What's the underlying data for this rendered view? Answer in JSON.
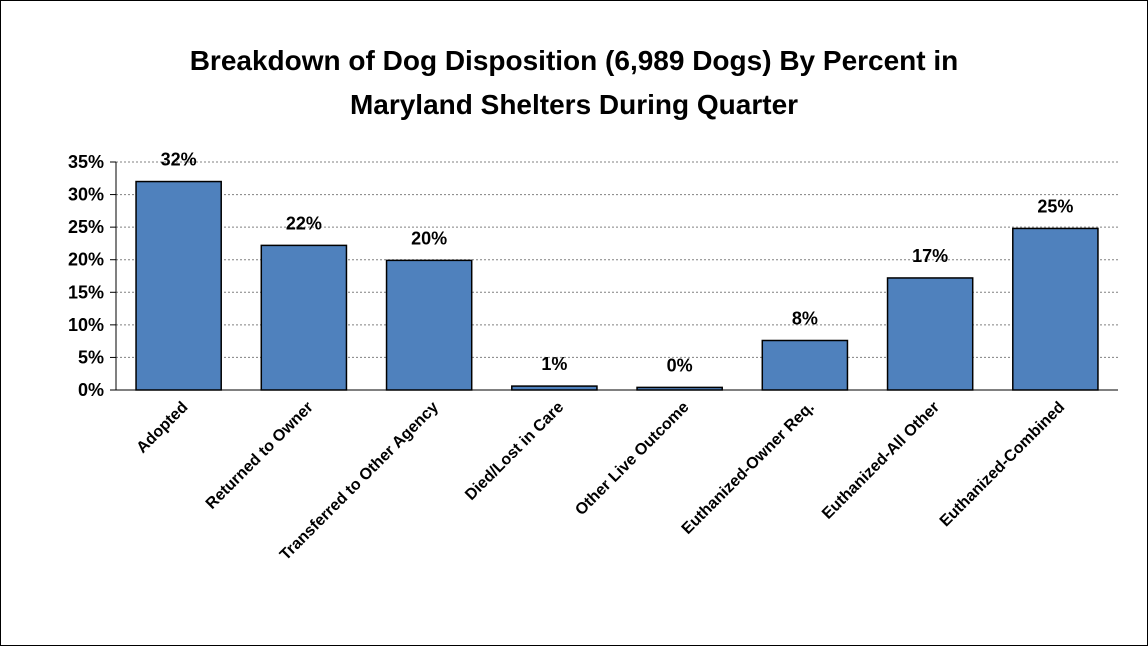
{
  "chart_data": {
    "type": "bar",
    "title_lines": [
      "Breakdown of Dog Disposition (6,989 Dogs) By Percent in",
      "Maryland Shelters During Quarter"
    ],
    "categories": [
      "Adopted",
      "Returned to Owner",
      "Transferred to Other Agency",
      "Died/Lost in Care",
      "Other Live Outcome",
      "Euthanized-Owner Req.",
      "Euthanized-All Other",
      "Euthanized-Combined"
    ],
    "values": [
      32,
      22.2,
      19.9,
      0.6,
      0.4,
      7.6,
      17.2,
      24.8
    ],
    "data_labels": [
      "32%",
      "22%",
      "20%",
      "1%",
      "0%",
      "8%",
      "17%",
      "25%"
    ],
    "y_ticks": [
      0,
      5,
      10,
      15,
      20,
      25,
      30,
      35
    ],
    "y_tick_labels": [
      "0%",
      "5%",
      "10%",
      "15%",
      "20%",
      "25%",
      "30%",
      "35%"
    ],
    "ylim": [
      0,
      35
    ],
    "xlabel": "",
    "ylabel": "",
    "grid": true,
    "legend": "none",
    "bar_color": "#4f81bd",
    "bar_edge_color": "#000000",
    "grid_color": "#808080"
  }
}
